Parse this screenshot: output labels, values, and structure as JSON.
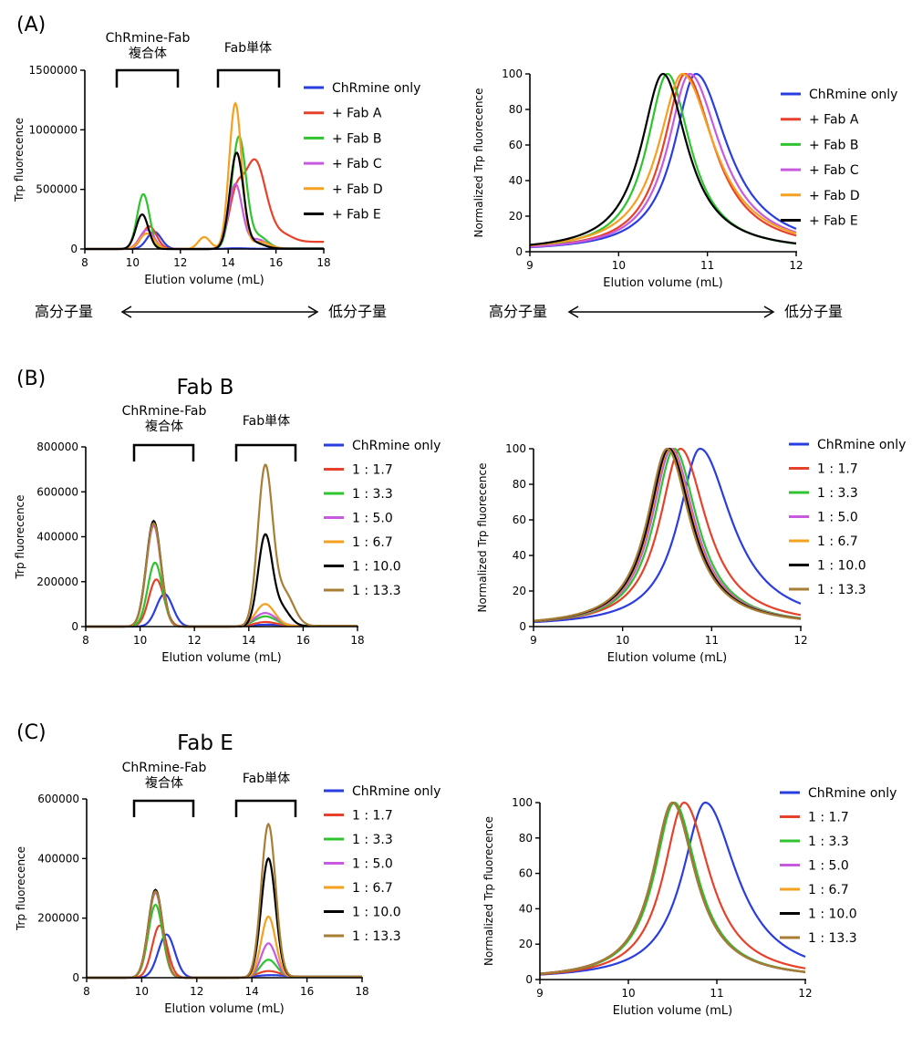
{
  "colors": {
    "blue": "#2a3de0",
    "red": "#e8412b",
    "green": "#2fc42f",
    "magenta": "#c85ae0",
    "orange": "#f5a01e",
    "black": "#000000",
    "brown": "#a87d35"
  },
  "panels": [
    {
      "id": "A",
      "label": "(A)",
      "title": "",
      "complex_label": [
        "ChRmine-Fab",
        "複合体"
      ],
      "fab_label": "Fab単体",
      "mw_high": "高分子量",
      "mw_low": "低分子量"
    },
    {
      "id": "B",
      "label": "(B)",
      "title": "Fab B",
      "complex_label": [
        "ChRmine-Fab",
        "複合体"
      ],
      "fab_label": "Fab単体"
    },
    {
      "id": "C",
      "label": "(C)",
      "title": "Fab E",
      "complex_label": [
        "ChRmine-Fab",
        "複合体"
      ],
      "fab_label": "Fab単体"
    }
  ],
  "chart_data": [
    {
      "id": "A-left",
      "type": "line",
      "xlabel": "Elution volume (mL)",
      "ylabel": "Trp fluorecence",
      "xlim": [
        8,
        18
      ],
      "ylim": [
        0,
        1500000
      ],
      "xticks": [
        "8",
        "10",
        "12",
        "14",
        "16",
        "18"
      ],
      "yticks": [
        "0",
        "500000",
        "1000000",
        "1500000"
      ],
      "grid": false,
      "legend": "right",
      "series": [
        {
          "name": "ChRmine only",
          "color": "#2a3de0",
          "peaks": [
            [
              10.9,
              145000,
              0.3
            ],
            [
              14.3,
              6000,
              0.4
            ]
          ],
          "tail": 2000
        },
        {
          "name": "+ Fab A",
          "color": "#e8412b",
          "peaks": [
            [
              10.7,
              190000,
              0.3
            ],
            [
              14.3,
              380000,
              0.3
            ],
            [
              15.1,
              720000,
              0.45
            ],
            [
              16.0,
              110000,
              0.5
            ]
          ],
          "tail": 60000
        },
        {
          "name": "+ Fab B",
          "color": "#2fc42f",
          "peaks": [
            [
              10.45,
              460000,
              0.26
            ],
            [
              14.45,
              940000,
              0.3
            ],
            [
              15.3,
              100000,
              0.35
            ]
          ],
          "tail": 5000
        },
        {
          "name": "+ Fab C",
          "color": "#c85ae0",
          "peaks": [
            [
              10.6,
              160000,
              0.3
            ],
            [
              14.3,
              540000,
              0.28
            ],
            [
              15.2,
              80000,
              0.4
            ]
          ],
          "tail": 4000
        },
        {
          "name": "+ Fab D",
          "color": "#f5a01e",
          "peaks": [
            [
              10.6,
              130000,
              0.3
            ],
            [
              13.0,
              100000,
              0.25
            ],
            [
              14.3,
              1220000,
              0.26
            ],
            [
              15.3,
              60000,
              0.4
            ]
          ],
          "tail": 3000
        },
        {
          "name": "+ Fab E",
          "color": "#000000",
          "peaks": [
            [
              10.4,
              290000,
              0.26
            ],
            [
              14.35,
              800000,
              0.28
            ],
            [
              15.1,
              50000,
              0.4
            ]
          ],
          "tail": 3000
        }
      ]
    },
    {
      "id": "A-right",
      "type": "line",
      "xlabel": "Elution volume (mL)",
      "ylabel": "Normalized Trp fluorecence",
      "xlim": [
        9,
        12
      ],
      "ylim": [
        0,
        100
      ],
      "xticks": [
        "9",
        "10",
        "11",
        "12"
      ],
      "yticks": [
        "0",
        "20",
        "40",
        "60",
        "80",
        "100"
      ],
      "grid": false,
      "legend": "right",
      "series": [
        {
          "name": "ChRmine only",
          "color": "#2a3de0",
          "center": 10.87,
          "wl": 0.38,
          "wr": 0.55,
          "endval": 8
        },
        {
          "name": "+ Fab A",
          "color": "#e8412b",
          "center": 10.75,
          "wl": 0.38,
          "wr": 0.5,
          "endval": 6
        },
        {
          "name": "+ Fab B",
          "color": "#2fc42f",
          "center": 10.55,
          "wl": 0.36,
          "wr": 0.4,
          "endval": 4
        },
        {
          "name": "+ Fab C",
          "color": "#c85ae0",
          "center": 10.8,
          "wl": 0.38,
          "wr": 0.53,
          "endval": 8
        },
        {
          "name": "+ Fab D",
          "color": "#f5a01e",
          "center": 10.72,
          "wl": 0.42,
          "wr": 0.55,
          "endval": 12
        },
        {
          "name": "+ Fab E",
          "color": "#000000",
          "center": 10.5,
          "wl": 0.38,
          "wr": 0.42,
          "endval": 6
        }
      ]
    },
    {
      "id": "B-left",
      "type": "line",
      "xlabel": "Elution volume (mL)",
      "ylabel": "Trp fluorecence",
      "xlim": [
        8,
        18
      ],
      "ylim": [
        0,
        800000
      ],
      "xticks": [
        "8",
        "10",
        "12",
        "14",
        "16",
        "18"
      ],
      "yticks": [
        "0",
        "200000",
        "400000",
        "600000",
        "800000"
      ],
      "grid": false,
      "legend": "right",
      "series": [
        {
          "name": "ChRmine only",
          "color": "#2a3de0",
          "peaks": [
            [
              10.9,
              145000,
              0.3
            ],
            [
              14.6,
              8000,
              0.5
            ]
          ],
          "tail": 3000
        },
        {
          "name": "1 : 1.7",
          "color": "#e8412b",
          "peaks": [
            [
              10.6,
              210000,
              0.28
            ],
            [
              14.6,
              20000,
              0.4
            ]
          ],
          "tail": 3000
        },
        {
          "name": "1 : 3.3",
          "color": "#2fc42f",
          "peaks": [
            [
              10.55,
              285000,
              0.27
            ],
            [
              14.6,
              45000,
              0.4
            ]
          ],
          "tail": 3000
        },
        {
          "name": "1 : 5.0",
          "color": "#c85ae0",
          "peaks": [
            [
              10.5,
              450000,
              0.27
            ],
            [
              14.6,
              60000,
              0.4
            ]
          ],
          "tail": 3000
        },
        {
          "name": "1 : 6.7",
          "color": "#f5a01e",
          "peaks": [
            [
              10.5,
              460000,
              0.27
            ],
            [
              14.6,
              100000,
              0.35
            ]
          ],
          "tail": 3000
        },
        {
          "name": "1 : 10.0",
          "color": "#000000",
          "peaks": [
            [
              10.5,
              470000,
              0.27
            ],
            [
              14.6,
              400000,
              0.26
            ],
            [
              15.2,
              80000,
              0.3
            ]
          ],
          "tail": 3000
        },
        {
          "name": "1 : 13.3",
          "color": "#a87d35",
          "peaks": [
            [
              10.5,
              460000,
              0.27
            ],
            [
              14.6,
              700000,
              0.27
            ],
            [
              15.3,
              150000,
              0.35
            ]
          ],
          "tail": 3000
        }
      ]
    },
    {
      "id": "B-right",
      "type": "line",
      "xlabel": "Elution volume (mL)",
      "ylabel": "Normalized Trp fluorecence",
      "xlim": [
        9,
        12
      ],
      "ylim": [
        0,
        100
      ],
      "xticks": [
        "9",
        "10",
        "11",
        "12"
      ],
      "yticks": [
        "0",
        "20",
        "40",
        "60",
        "80",
        "100"
      ],
      "grid": false,
      "legend": "right",
      "series": [
        {
          "name": "ChRmine only",
          "color": "#2a3de0",
          "center": 10.87,
          "wl": 0.38,
          "wr": 0.55,
          "endval": 6
        },
        {
          "name": "1 : 1.7",
          "color": "#e8412b",
          "center": 10.65,
          "wl": 0.36,
          "wr": 0.45,
          "endval": 3
        },
        {
          "name": "1 : 3.3",
          "color": "#2fc42f",
          "center": 10.58,
          "wl": 0.35,
          "wr": 0.4,
          "endval": 2
        },
        {
          "name": "1 : 5.0",
          "color": "#c85ae0",
          "center": 10.55,
          "wl": 0.35,
          "wr": 0.4,
          "endval": 2
        },
        {
          "name": "1 : 6.7",
          "color": "#f5a01e",
          "center": 10.53,
          "wl": 0.35,
          "wr": 0.4,
          "endval": 2
        },
        {
          "name": "1 : 10.0",
          "color": "#000000",
          "center": 10.52,
          "wl": 0.35,
          "wr": 0.4,
          "endval": 2
        },
        {
          "name": "1 : 13.3",
          "color": "#a87d35",
          "center": 10.5,
          "wl": 0.35,
          "wr": 0.4,
          "endval": 2
        }
      ]
    },
    {
      "id": "C-left",
      "type": "line",
      "xlabel": "Elution volume (mL)",
      "ylabel": "Trp fluorecence",
      "xlim": [
        8,
        18
      ],
      "ylim": [
        0,
        600000
      ],
      "xticks": [
        "8",
        "10",
        "12",
        "14",
        "16",
        "18"
      ],
      "yticks": [
        "0",
        "200000",
        "400000",
        "600000"
      ],
      "grid": false,
      "legend": "right",
      "series": [
        {
          "name": "ChRmine only",
          "color": "#2a3de0",
          "peaks": [
            [
              10.9,
              145000,
              0.3
            ],
            [
              14.6,
              8000,
              0.5
            ]
          ],
          "tail": 3000
        },
        {
          "name": "1 : 1.7",
          "color": "#e8412b",
          "peaks": [
            [
              10.65,
              175000,
              0.27
            ],
            [
              14.6,
              22000,
              0.4
            ]
          ],
          "tail": 3000
        },
        {
          "name": "1 : 3.3",
          "color": "#2fc42f",
          "peaks": [
            [
              10.5,
              245000,
              0.26
            ],
            [
              14.6,
              60000,
              0.3
            ]
          ],
          "tail": 3000
        },
        {
          "name": "1 : 5.0",
          "color": "#c85ae0",
          "peaks": [
            [
              10.5,
              285000,
              0.26
            ],
            [
              14.6,
              115000,
              0.27
            ]
          ],
          "tail": 3000
        },
        {
          "name": "1 : 6.7",
          "color": "#f5a01e",
          "peaks": [
            [
              10.5,
              290000,
              0.26
            ],
            [
              14.6,
              205000,
              0.26
            ]
          ],
          "tail": 3000
        },
        {
          "name": "1 : 10.0",
          "color": "#000000",
          "peaks": [
            [
              10.5,
              295000,
              0.26
            ],
            [
              14.6,
              400000,
              0.26
            ]
          ],
          "tail": 3000
        },
        {
          "name": "1 : 13.3",
          "color": "#a87d35",
          "peaks": [
            [
              10.5,
              290000,
              0.26
            ],
            [
              14.6,
              515000,
              0.26
            ]
          ],
          "tail": 3000
        }
      ]
    },
    {
      "id": "C-right",
      "type": "line",
      "xlabel": "Elution volume (mL)",
      "ylabel": "Normalized Trp fluorecence",
      "xlim": [
        9,
        12
      ],
      "ylim": [
        0,
        100
      ],
      "xticks": [
        "9",
        "10",
        "11",
        "12"
      ],
      "yticks": [
        "0",
        "20",
        "40",
        "60",
        "80",
        "100"
      ],
      "grid": false,
      "legend": "right",
      "series": [
        {
          "name": "ChRmine only",
          "color": "#2a3de0",
          "center": 10.87,
          "wl": 0.4,
          "wr": 0.55,
          "endval": 8
        },
        {
          "name": "1 : 1.7",
          "color": "#e8412b",
          "center": 10.63,
          "wl": 0.36,
          "wr": 0.45,
          "endval": 4
        },
        {
          "name": "1 : 3.3",
          "color": "#2fc42f",
          "center": 10.52,
          "wl": 0.35,
          "wr": 0.4,
          "endval": 3
        },
        {
          "name": "1 : 5.0",
          "color": "#c85ae0",
          "center": 10.5,
          "wl": 0.35,
          "wr": 0.4,
          "endval": 3
        },
        {
          "name": "1 : 6.7",
          "color": "#f5a01e",
          "center": 10.5,
          "wl": 0.35,
          "wr": 0.4,
          "endval": 3
        },
        {
          "name": "1 : 10.0",
          "color": "#000000",
          "center": 10.5,
          "wl": 0.35,
          "wr": 0.4,
          "endval": 3
        },
        {
          "name": "1 : 13.3",
          "color": "#a87d35",
          "center": 10.5,
          "wl": 0.35,
          "wr": 0.4,
          "endval": 3
        }
      ]
    }
  ]
}
